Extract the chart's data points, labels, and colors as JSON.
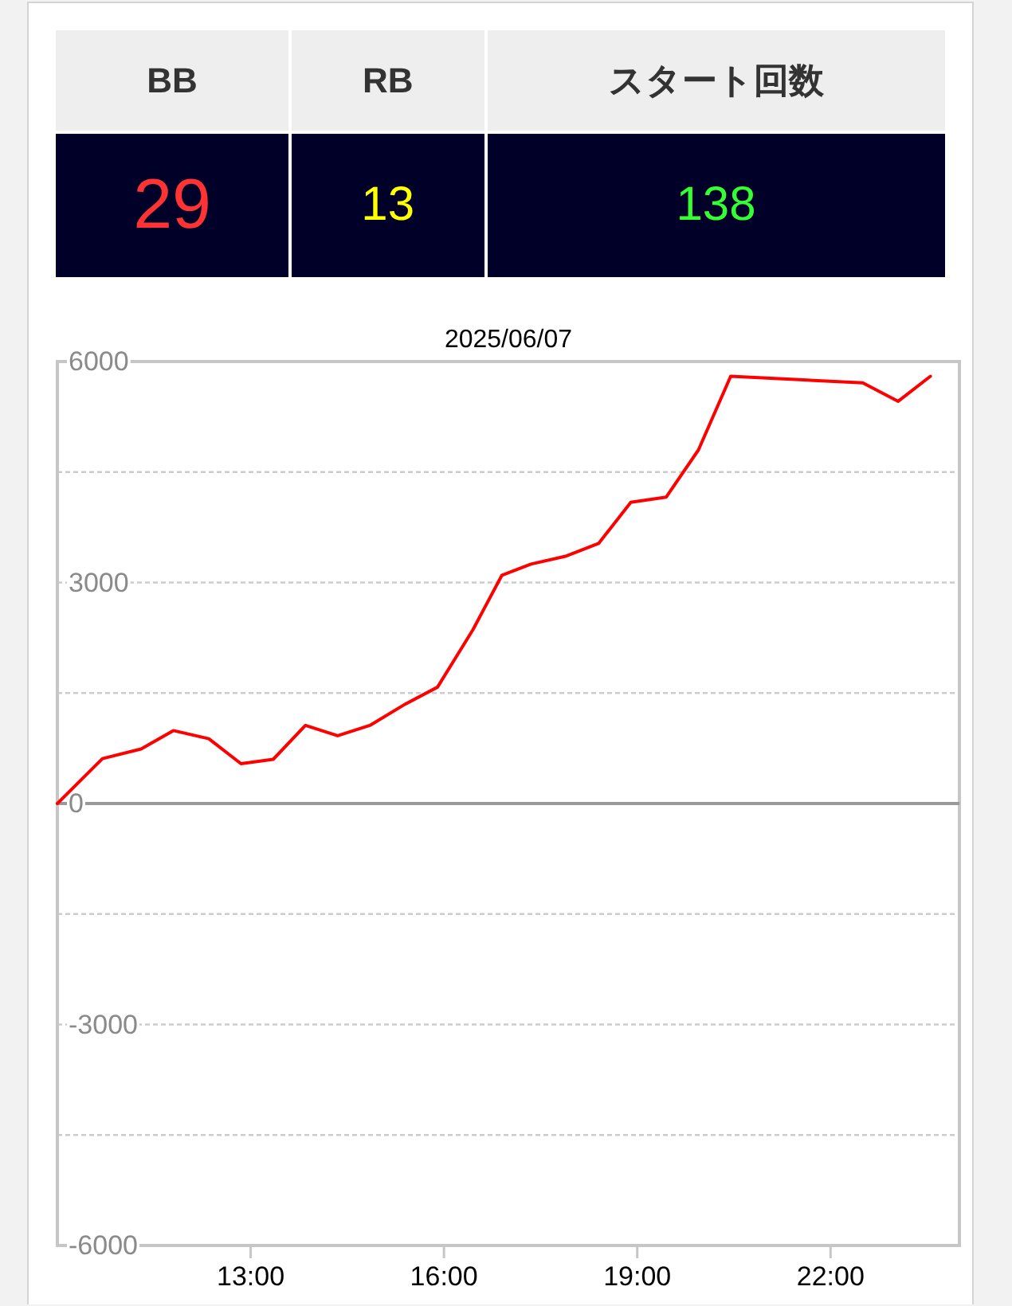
{
  "chart_data": [
    {
      "type": "other",
      "categories": [
        "BB",
        "RB",
        "スタート回数"
      ],
      "values": [
        29,
        13,
        138
      ],
      "data_labels": true
    },
    {
      "type": "line",
      "title": "2025/06/07",
      "x": [
        10,
        10.7,
        11.3,
        11.8,
        12.35,
        12.85,
        13.35,
        13.85,
        14.35,
        14.85,
        15.4,
        15.9,
        16.45,
        16.9,
        17.35,
        17.9,
        18.4,
        18.9,
        19.45,
        19.95,
        20.45,
        22.5,
        23.05,
        23.55
      ],
      "values": [
        0,
        610,
        740,
        990,
        880,
        540,
        600,
        1060,
        920,
        1060,
        1350,
        1580,
        2360,
        3100,
        3250,
        3360,
        3530,
        4090,
        4160,
        4800,
        5800,
        5710,
        5460,
        5800
      ],
      "color": "#ff0000",
      "xlim": [
        10,
        24
      ],
      "xticks": [
        {
          "value": 13,
          "label": "13:00"
        },
        {
          "value": 16,
          "label": "16:00"
        },
        {
          "value": 19,
          "label": "19:00"
        },
        {
          "value": 22,
          "label": "22:00"
        }
      ],
      "ylim": [
        -6000,
        6000
      ],
      "yticks": [
        -6000,
        {
          "value": -4500,
          "label": null
        },
        -3000,
        {
          "value": -1500,
          "label": null
        },
        0,
        {
          "value": 1500,
          "label": null
        },
        3000,
        {
          "value": 4500,
          "label": null
        },
        6000
      ],
      "grid": "y",
      "ref_lines": [
        {
          "axis": "y",
          "value": 0,
          "color": "#999999"
        }
      ]
    }
  ]
}
